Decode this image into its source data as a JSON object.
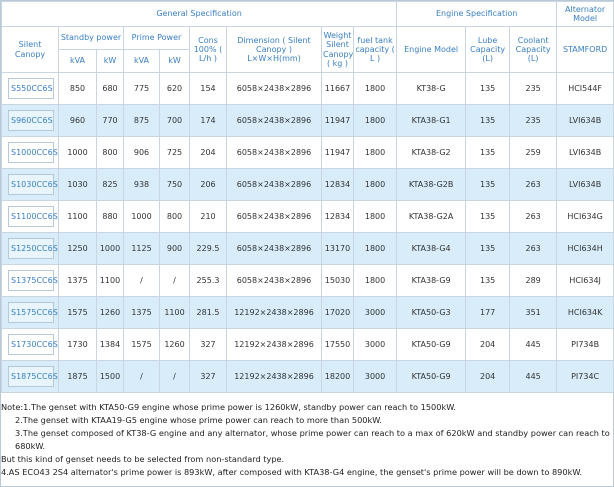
{
  "table": {
    "group_headers": [
      "General Specification",
      "Engine Specification",
      "Alternator Model"
    ],
    "headers": [
      "Silent Canopy",
      "Standby power",
      "Prime Power",
      "Cons 100% ( L/h )",
      "Dimension ( Silent Canopy ) L×W×H(mm)",
      "Weight Silent Canopy ( kg )",
      "fuel tank capacity ( L )",
      "Engine Model",
      "Lube Capacity (L)",
      "Coolant Capacity (L)",
      "STAMFORD"
    ],
    "sub_headers": [
      "kVA",
      "kW",
      "kVA",
      "kW"
    ],
    "rows": [
      [
        "S550CC6S",
        850,
        680,
        775,
        620,
        154,
        "6058×2438×2896",
        11667,
        1800,
        "KT38-G",
        135,
        235,
        "HCI544F"
      ],
      [
        "S960CC6S",
        960,
        770,
        875,
        700,
        174,
        "6058×2438×2896",
        11947,
        1800,
        "KTA38-G1",
        135,
        235,
        "LVI634B"
      ],
      [
        "S1000CC6S",
        1000,
        800,
        906,
        725,
        204,
        "6058×2438×2896",
        11947,
        1800,
        "KTA38-G2",
        135,
        259,
        "LVI634B"
      ],
      [
        "S1030CC6S",
        1030,
        825,
        938,
        750,
        206,
        "6058×2438×2896",
        12834,
        1800,
        "KTA38-G2B",
        135,
        263,
        "LVI634B"
      ],
      [
        "S1100CC6S",
        1100,
        880,
        1000,
        800,
        210,
        "6058×2438×2896",
        12834,
        1800,
        "KTA38-G2A",
        135,
        263,
        "HCI634G"
      ],
      [
        "S1250CC6S",
        1250,
        1000,
        1125,
        900,
        229.5,
        "6058×2438×2896",
        13170,
        1800,
        "KTA38-G4",
        135,
        263,
        "HCI634H"
      ],
      [
        "S1375CC6S",
        1375,
        1100,
        "/",
        "/",
        255.3,
        "6058×2438×2896",
        15030,
        1800,
        "KTA38-G9",
        135,
        289,
        "HCI634J"
      ],
      [
        "S1575CC6S",
        1575,
        1260,
        1375,
        1100,
        281.5,
        "12192×2438×2896",
        17020,
        3000,
        "KTA50-G3",
        177,
        351,
        "HCI634K"
      ],
      [
        "S1730CC6S",
        1730,
        1384,
        1575,
        1260,
        327,
        "12192×2438×2896",
        17550,
        3000,
        "KTA50-G9",
        204,
        445,
        "PI734B"
      ],
      [
        "S1875CC6S",
        1875,
        1500,
        "/",
        "/",
        327,
        "12192×2438×2896",
        18200,
        3000,
        "KTA50-G9",
        204,
        445,
        "PI734C"
      ]
    ]
  },
  "notes": [
    "Note:1.The genset with KTA50-G9 engine whose prime power is 1260kW, standby power can reach to 1500kW.",
    "2.The genset with KTAA19-G5 engine whose prime power can reach to more than 500kW.",
    "3.The genset composed of KT38-G engine and any alternator, whose prime power can reach to a max of 620kW and standby power can reach to 680kW.",
    "But this kind of genset needs to be selected from non-standard type.",
    "4.AS ECO43 2S4 alternator's prime power is 893kW, after composed with KTA38-G4 engine, the genset's prime power will be down to 890kW."
  ]
}
